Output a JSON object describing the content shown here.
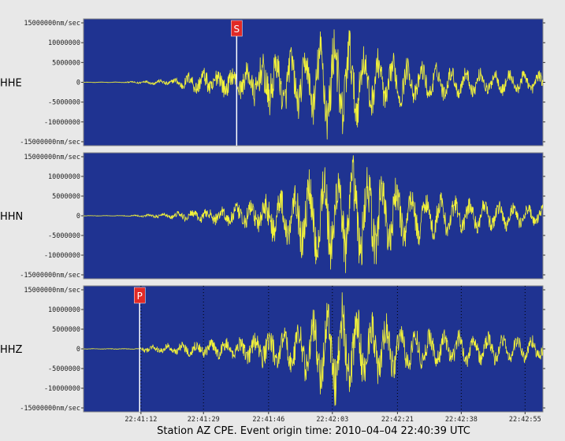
{
  "caption": "Station AZ CPE.  Event origin time: 2010–04–04 22:40:39 UTC",
  "colors": {
    "background": "#e8e8e8",
    "panel": "#1f3391",
    "trace": "#f2f23a",
    "phase_marker": "#e22a26",
    "pick_line": "#ffffff"
  },
  "chart_data": [
    {
      "type": "line",
      "channel": "HHE",
      "ylim": [
        -16000000,
        16000000
      ],
      "yticks": [
        15000000,
        10000000,
        5000000,
        0,
        -5000000,
        -10000000,
        -15000000
      ],
      "ytick_labels": [
        "15000000nm/sec",
        "10000000",
        "5000000",
        "0",
        "-5000000",
        "-10000000",
        "-15000000nm/sec"
      ],
      "phase_pick": {
        "label": "S",
        "time_s": 120
      },
      "envelope": [
        [
          0,
          0.05
        ],
        [
          30,
          0.08
        ],
        [
          70,
          0.8
        ],
        [
          90,
          3
        ],
        [
          110,
          3.5
        ],
        [
          120,
          3
        ],
        [
          140,
          6
        ],
        [
          160,
          10
        ],
        [
          175,
          9
        ],
        [
          190,
          15.5
        ],
        [
          205,
          16
        ],
        [
          220,
          10
        ],
        [
          240,
          8
        ],
        [
          260,
          6
        ],
        [
          300,
          4
        ],
        [
          360,
          3
        ]
      ],
      "series": [
        {
          "values": []
        }
      ]
    },
    {
      "type": "line",
      "channel": "HHN",
      "ylim": [
        -16000000,
        16000000
      ],
      "yticks": [
        15000000,
        10000000,
        5000000,
        0,
        -5000000,
        -10000000,
        -15000000
      ],
      "ytick_labels": [
        "15000000nm/sec",
        "10000000",
        "5000000",
        "0",
        "-5000000",
        "-10000000",
        "-15000000nm/sec"
      ],
      "envelope": [
        [
          0,
          0.05
        ],
        [
          30,
          0.06
        ],
        [
          60,
          0.5
        ],
        [
          90,
          1.5
        ],
        [
          115,
          2.5
        ],
        [
          140,
          4
        ],
        [
          160,
          9
        ],
        [
          175,
          12
        ],
        [
          190,
          16
        ],
        [
          215,
          16
        ],
        [
          235,
          14
        ],
        [
          250,
          9
        ],
        [
          270,
          7
        ],
        [
          300,
          5
        ],
        [
          330,
          4
        ],
        [
          360,
          3
        ]
      ],
      "series": [
        {
          "values": []
        }
      ]
    },
    {
      "type": "line",
      "channel": "HHZ",
      "ylim": [
        -16000000,
        16000000
      ],
      "yticks": [
        15000000,
        10000000,
        5000000,
        0,
        -5000000,
        -10000000,
        -15000000
      ],
      "ytick_labels": [
        "15000000nm/sec",
        "10000000",
        "5000000",
        "0",
        "-5000000",
        "-10000000",
        "-15000000nm/sec"
      ],
      "phase_pick": {
        "label": "P",
        "time_s": 44
      },
      "envelope": [
        [
          0,
          0.05
        ],
        [
          44,
          0.1
        ],
        [
          48,
          0.8
        ],
        [
          80,
          1.5
        ],
        [
          120,
          2.5
        ],
        [
          150,
          5
        ],
        [
          175,
          9
        ],
        [
          190,
          14
        ],
        [
          200,
          16
        ],
        [
          215,
          12
        ],
        [
          240,
          9
        ],
        [
          260,
          6
        ],
        [
          300,
          5
        ],
        [
          360,
          3.5
        ]
      ],
      "series": [
        {
          "values": []
        }
      ]
    }
  ],
  "x_axis": {
    "time_range_s": [
      0,
      360
    ],
    "ticks": [
      {
        "label": "22:41:12",
        "time_s": 45
      },
      {
        "label": "22:41:29",
        "time_s": 94
      },
      {
        "label": "22:41:46",
        "time_s": 145
      },
      {
        "label": "22:42:03",
        "time_s": 195
      },
      {
        "label": "22:42:21",
        "time_s": 246
      },
      {
        "label": "22:42:38",
        "time_s": 296
      },
      {
        "label": "22:42:55",
        "time_s": 346
      }
    ]
  }
}
